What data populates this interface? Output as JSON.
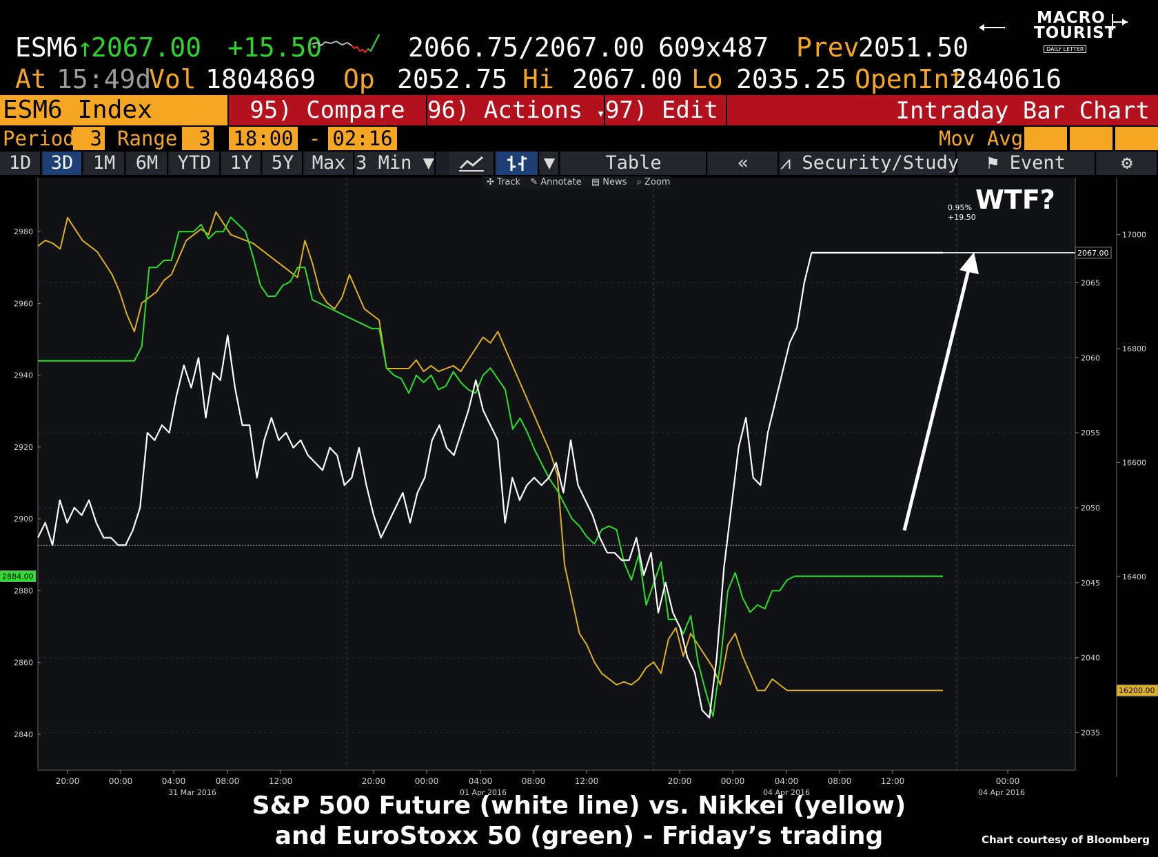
{
  "quote": {
    "ticker": "ESM6",
    "last": "2067.00",
    "change": "+15.50",
    "bid_ask": "2066.75/2067.00",
    "size": "609x487",
    "prev_label": "Prev",
    "prev": "2051.50",
    "at_label": "At",
    "time": "15:49d",
    "vol_label": "Vol",
    "vol": "1804869",
    "open_label": "Op",
    "open": "2052.75",
    "hi_label": "Hi",
    "hi": "2067.00",
    "lo_label": "Lo",
    "lo": "2035.25",
    "oi_label": "OpenInt",
    "oi": "2840616"
  },
  "logo": {
    "line1": "MACRO",
    "line2": "TOURIST",
    "sub": "DAILY LETTER"
  },
  "toolbar": {
    "index_label": "ESM6 Index",
    "compare": "95) Compare",
    "actions": "96) Actions",
    "edit": "97) Edit",
    "chart_title": "Intraday Bar Chart"
  },
  "params": {
    "period_label": "Period",
    "period": "3",
    "range_label": "Range",
    "range": "3",
    "start": "18:00",
    "dash": "-",
    "end": "02:16",
    "movavg_label": "Mov Avg"
  },
  "tabs": [
    "1D",
    "3D",
    "1M",
    "6M",
    "YTD",
    "1Y",
    "5Y",
    "Max",
    "3 Min"
  ],
  "selected_tab": "3D",
  "right_tabs": {
    "table": "Table",
    "security_study": "Security/Study",
    "event": "Event"
  },
  "chart_tools": [
    "Track",
    "Annotate",
    "News",
    "Zoom"
  ],
  "chart_data": {
    "type": "line",
    "x_ticks": [
      "20:00",
      "00:00",
      "04:00",
      "08:00",
      "12:00",
      "20:00",
      "00:00",
      "04:00",
      "08:00",
      "12:00",
      "20:00",
      "00:00",
      "04:00",
      "08:00",
      "12:00",
      "00:00"
    ],
    "x_date_labels": [
      "31 Mar 2016",
      "01 Apr 2016",
      "04 Apr 2016",
      "04 Apr 2016"
    ],
    "left_axis": {
      "ticks": [
        2980,
        2960,
        2940,
        2920,
        2900,
        2880,
        2860,
        2840
      ],
      "range": [
        2830,
        2995
      ]
    },
    "mid_axis": {
      "ticks": [
        2065,
        2060,
        2055,
        2050,
        2045,
        2040,
        2035
      ],
      "range": [
        2032.5,
        2072
      ]
    },
    "right_axis": {
      "ticks": [
        17000,
        16800,
        16600,
        16400,
        16200
      ],
      "range": [
        16060,
        17100
      ]
    },
    "labels": {
      "last_price": "2067.00",
      "green_last": "2884.00",
      "yellow_last": "16200.00",
      "pct_change": "0.95%",
      "abs_change": "+19.50"
    },
    "reference_line": 2047.5,
    "annotation": "WTF?",
    "series": [
      {
        "color": "#ffffff",
        "axis": "mid",
        "values": [
          2048,
          2049,
          2047.5,
          2050.5,
          2049,
          2050,
          2049.5,
          2050.5,
          2049,
          2048,
          2048,
          2047.5,
          2047.5,
          2048.5,
          2050,
          2055,
          2054.5,
          2055.5,
          2055,
          2057.5,
          2059.5,
          2058,
          2060,
          2056,
          2059,
          2058.5,
          2061.5,
          2058,
          2055.5,
          2055.5,
          2052,
          2054.5,
          2056,
          2054.5,
          2055,
          2054,
          2054.5,
          2053.5,
          2053,
          2052.5,
          2054,
          2053.5,
          2051.5,
          2052,
          2054,
          2051.5,
          2049.5,
          2048,
          2049,
          2050,
          2051,
          2049,
          2051,
          2052,
          2054.5,
          2055.5,
          2054,
          2053.5,
          2055,
          2056.5,
          2058.5,
          2056.5,
          2055.5,
          2054.5,
          2049,
          2052,
          2050.5,
          2051.5,
          2052,
          2051.5,
          2052,
          2053,
          2051,
          2054.5,
          2051.5,
          2050.5,
          2049.5,
          2048,
          2047,
          2047,
          2046.5,
          2046.5,
          2048,
          2045.5,
          2047,
          2043,
          2045,
          2043,
          2042,
          2040,
          2039,
          2036.5,
          2036,
          2040,
          2046,
          2050,
          2054,
          2056,
          2052,
          2051.5,
          2055,
          2057,
          2059,
          2061,
          2062,
          2065,
          2067,
          2067,
          2067,
          2067,
          2067,
          2067,
          2067,
          2067,
          2067,
          2067,
          2067,
          2067,
          2067,
          2067,
          2067,
          2067,
          2067,
          2067,
          2067
        ]
      },
      {
        "color": "#2be02b",
        "axis": "left",
        "values": [
          2944,
          2944,
          2944,
          2944,
          2944,
          2944,
          2944,
          2944,
          2944,
          2944,
          2944,
          2944,
          2944,
          2944,
          2948,
          2970,
          2970,
          2972,
          2972,
          2980,
          2980,
          2980,
          2982,
          2978,
          2980,
          2980,
          2984,
          2982,
          2980,
          2973,
          2965,
          2962,
          2962,
          2965,
          2966,
          2970,
          2970,
          2961,
          2960,
          2959,
          2958,
          2957,
          2956,
          2955,
          2954,
          2953,
          2953,
          2942,
          2940,
          2939,
          2935,
          2940,
          2938,
          2940,
          2936,
          2937,
          2941,
          2938,
          2936,
          2935,
          2940,
          2942,
          2939,
          2936,
          2925,
          2928,
          2924,
          2919,
          2915,
          2911,
          2908,
          2904,
          2900,
          2898,
          2895,
          2893,
          2897,
          2898,
          2897,
          2888,
          2883,
          2890,
          2876,
          2882,
          2888,
          2872,
          2872,
          2868,
          2873,
          2860,
          2852,
          2845,
          2860,
          2880,
          2885,
          2878,
          2874,
          2876,
          2875,
          2880,
          2880,
          2883,
          2884,
          2884,
          2884,
          2884,
          2884,
          2884,
          2884,
          2884,
          2884,
          2884,
          2884,
          2884,
          2884,
          2884,
          2884,
          2884,
          2884,
          2884,
          2884,
          2884,
          2884
        ]
      },
      {
        "color": "#e0b020",
        "axis": "right",
        "values": [
          16980,
          16990,
          16985,
          16975,
          17030,
          17010,
          16990,
          16980,
          16970,
          16950,
          16930,
          16900,
          16860,
          16830,
          16880,
          16890,
          16900,
          16920,
          16930,
          16960,
          16990,
          17000,
          17010,
          17000,
          17040,
          17020,
          17000,
          16995,
          16990,
          16985,
          16975,
          16965,
          16955,
          16945,
          16935,
          16925,
          16990,
          16950,
          16900,
          16880,
          16870,
          16890,
          16930,
          16900,
          16870,
          16860,
          16850,
          16765,
          16765,
          16765,
          16765,
          16780,
          16760,
          16770,
          16760,
          16765,
          16770,
          16760,
          16780,
          16800,
          16820,
          16810,
          16830,
          16800,
          16770,
          16740,
          16710,
          16680,
          16650,
          16620,
          16580,
          16420,
          16360,
          16300,
          16280,
          16250,
          16230,
          16220,
          16210,
          16215,
          16210,
          16220,
          16240,
          16250,
          16230,
          16290,
          16310,
          16260,
          16300,
          16280,
          16260,
          16240,
          16210,
          16280,
          16300,
          16260,
          16230,
          16200,
          16200,
          16220,
          16210,
          16200,
          16200,
          16200,
          16200,
          16200,
          16200,
          16200,
          16200,
          16200,
          16200,
          16200,
          16200,
          16200,
          16200,
          16200,
          16200,
          16200,
          16200,
          16200,
          16200,
          16200,
          16200
        ]
      }
    ]
  },
  "caption": {
    "line1": "S&P 500 Future (white line) vs. Nikkei (yellow)",
    "line2": "and EuroStoxx 50 (green) - Friday’s trading"
  },
  "credit": "Chart courtesy of Bloomberg"
}
